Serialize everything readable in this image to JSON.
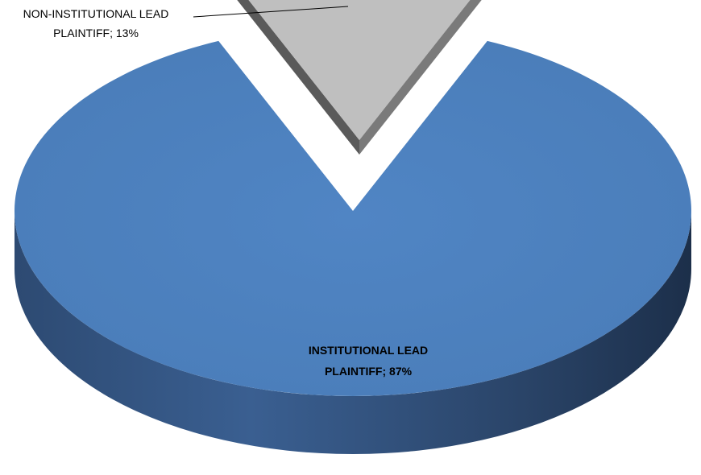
{
  "chart_data": {
    "type": "pie",
    "style": "3d-exploded",
    "title": "",
    "slices": [
      {
        "label_line1": "INSTITUTIONAL LEAD",
        "label_line2": "PLAINTIFF; 87%",
        "value": 87,
        "color": "#4F81BD"
      },
      {
        "label_line1": "NON-INSTITUTIONAL LEAD",
        "label_line2": "PLAINTIFF; 13%",
        "value": 13,
        "color": "#BFBFBF",
        "exploded": true
      }
    ]
  }
}
